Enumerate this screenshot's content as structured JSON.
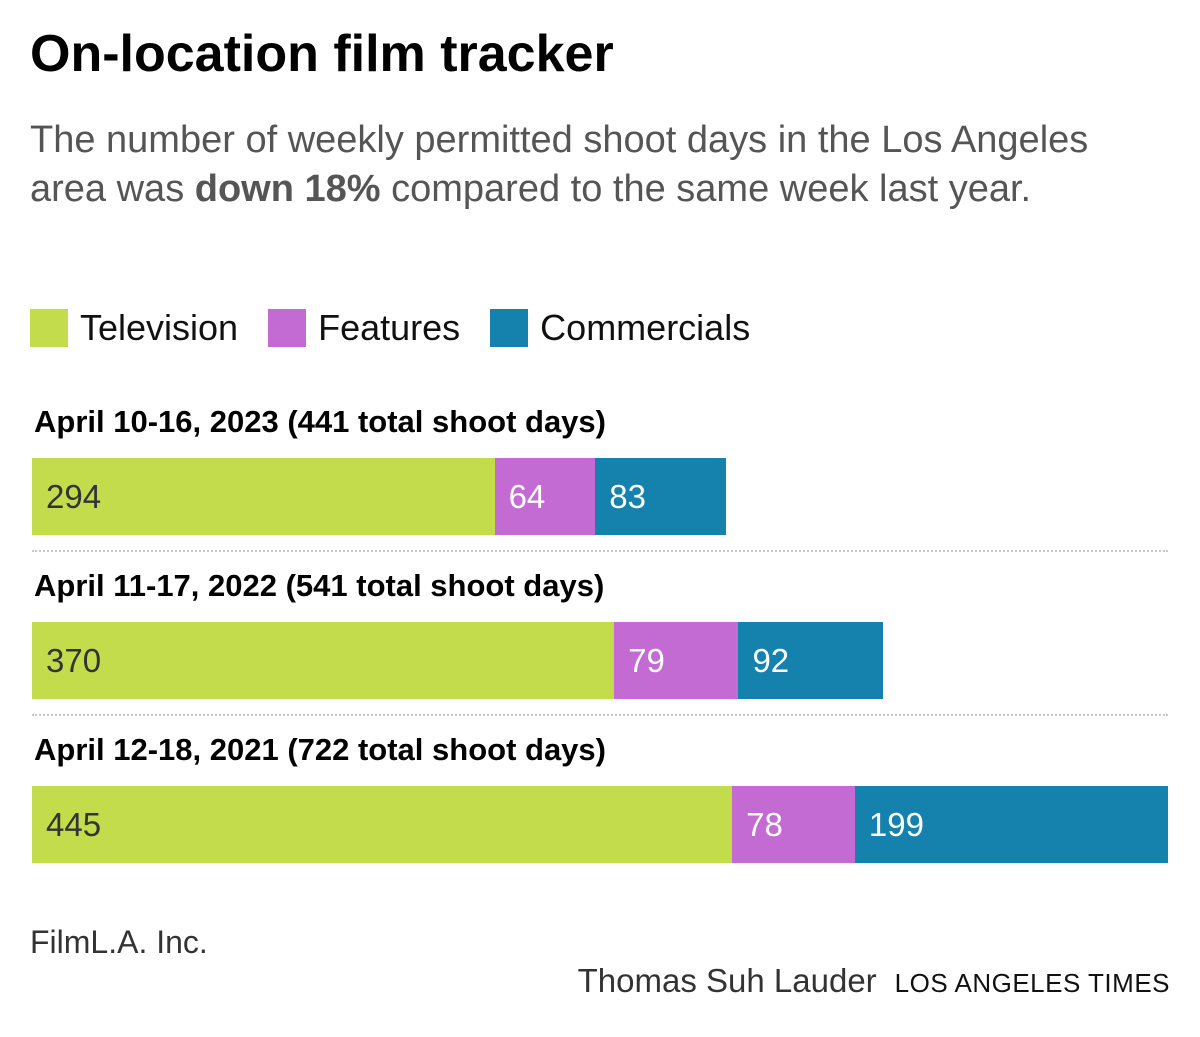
{
  "title": "On-location film tracker",
  "subtitle": {
    "before": "The number of weekly permitted shoot days in the Los Angeles area was ",
    "emphasis": "down 18%",
    "after": " compared to the same week last year."
  },
  "legend": [
    {
      "label": "Television",
      "color": "#c3dc4b"
    },
    {
      "label": "Features",
      "color": "#c46bd3"
    },
    {
      "label": "Commercials",
      "color": "#1582ad"
    }
  ],
  "chart_data": {
    "type": "bar",
    "orientation": "horizontal",
    "stacked": true,
    "title": "On-location film tracker",
    "xlim": [
      0,
      722
    ],
    "categories": [
      "April 10-16, 2023 (441 total shoot days)",
      "April 11-17, 2022 (541 total shoot days)",
      "April 12-18, 2021 (722 total shoot days)"
    ],
    "series": [
      {
        "name": "Television",
        "color": "#c3dc4b",
        "label_color": "#333333",
        "values": [
          294,
          370,
          445
        ]
      },
      {
        "name": "Features",
        "color": "#c46bd3",
        "label_color": "#ffffff",
        "values": [
          64,
          79,
          78
        ]
      },
      {
        "name": "Commercials",
        "color": "#1582ad",
        "label_color": "#ffffff",
        "values": [
          83,
          92,
          199
        ]
      }
    ]
  },
  "footer": {
    "source": "FilmL.A. Inc.",
    "author": "Thomas Suh Lauder",
    "org": "LOS ANGELES TIMES"
  }
}
